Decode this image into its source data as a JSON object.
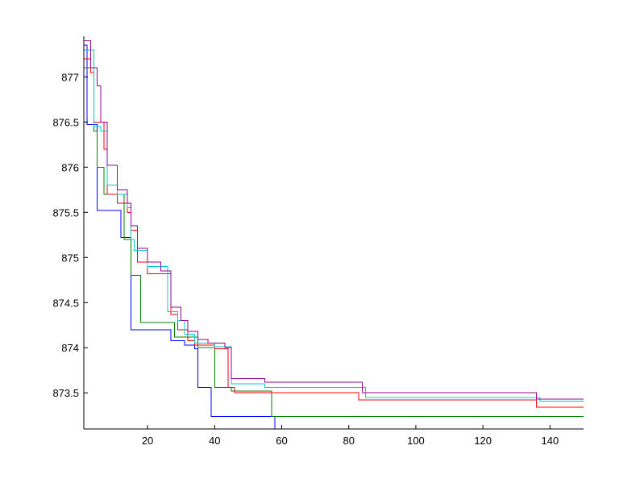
{
  "chart_data": {
    "type": "line",
    "title": "",
    "xlabel": "",
    "ylabel": "",
    "xlim": [
      1,
      150
    ],
    "ylim": [
      873.1,
      877.45
    ],
    "grid": false,
    "x_ticks": [
      20,
      40,
      60,
      80,
      100,
      120,
      140
    ],
    "y_ticks": [
      873.5,
      874,
      874.5,
      875,
      875.5,
      876,
      876.5,
      877
    ],
    "x_tick_labels": [
      "20",
      "40",
      "60",
      "80",
      "100",
      "120",
      "140"
    ],
    "y_tick_labels": [
      "873.5",
      "874",
      "874.5",
      "875",
      "875.5",
      "876",
      "876.5",
      "877"
    ],
    "series": [
      {
        "color": "#0000ff",
        "steps": [
          [
            1,
            877.35
          ],
          [
            2,
            876.47
          ],
          [
            5,
            875.52
          ],
          [
            12,
            875.22
          ],
          [
            15,
            874.2
          ],
          [
            27,
            874.08
          ],
          [
            31,
            874.03
          ],
          [
            34,
            873.99
          ],
          [
            35,
            873.56
          ],
          [
            39,
            873.24
          ],
          [
            58,
            873.05
          ]
        ]
      },
      {
        "color": "#008000",
        "steps": [
          [
            1,
            877.1
          ],
          [
            4,
            876.4
          ],
          [
            5,
            876.0
          ],
          [
            7,
            875.7
          ],
          [
            13,
            875.2
          ],
          [
            15,
            874.8
          ],
          [
            18,
            874.28
          ],
          [
            28,
            874.12
          ],
          [
            35,
            874.0
          ],
          [
            40,
            873.56
          ],
          [
            45,
            873.52
          ],
          [
            57,
            873.24
          ],
          [
            150,
            873.24
          ]
        ]
      },
      {
        "color": "#ff0000",
        "steps": [
          [
            1,
            877.2
          ],
          [
            3,
            877.05
          ],
          [
            4,
            876.5
          ],
          [
            7,
            876.2
          ],
          [
            8,
            875.7
          ],
          [
            11,
            875.6
          ],
          [
            14,
            875.5
          ],
          [
            15,
            875.3
          ],
          [
            17,
            874.95
          ],
          [
            20,
            874.82
          ],
          [
            27,
            874.37
          ],
          [
            29,
            874.2
          ],
          [
            32,
            874.08
          ],
          [
            34,
            874.03
          ],
          [
            40,
            873.99
          ],
          [
            44,
            873.56
          ],
          [
            46,
            873.5
          ],
          [
            83,
            873.42
          ],
          [
            136,
            873.34
          ],
          [
            150,
            873.34
          ]
        ]
      },
      {
        "color": "#00cccc",
        "steps": [
          [
            1,
            877.3
          ],
          [
            4,
            876.45
          ],
          [
            6,
            876.4
          ],
          [
            8,
            875.8
          ],
          [
            11,
            875.7
          ],
          [
            14,
            875.55
          ],
          [
            15,
            875.2
          ],
          [
            16,
            875.08
          ],
          [
            20,
            874.9
          ],
          [
            26,
            874.4
          ],
          [
            29,
            874.3
          ],
          [
            31,
            874.15
          ],
          [
            34,
            874.05
          ],
          [
            40,
            874.01
          ],
          [
            45,
            873.6
          ],
          [
            55,
            873.56
          ],
          [
            85,
            873.45
          ],
          [
            137,
            873.41
          ],
          [
            150,
            873.41
          ]
        ]
      },
      {
        "color": "#990099",
        "steps": [
          [
            1,
            877.4
          ],
          [
            3,
            877.1
          ],
          [
            5,
            876.9
          ],
          [
            6,
            876.5
          ],
          [
            8,
            876.02
          ],
          [
            11,
            875.75
          ],
          [
            14,
            875.6
          ],
          [
            15,
            875.35
          ],
          [
            17,
            875.1
          ],
          [
            20,
            874.95
          ],
          [
            24,
            874.85
          ],
          [
            27,
            874.45
          ],
          [
            30,
            874.3
          ],
          [
            32,
            874.18
          ],
          [
            35,
            874.09
          ],
          [
            38,
            874.05
          ],
          [
            43,
            874.0
          ],
          [
            45,
            873.66
          ],
          [
            55,
            873.62
          ],
          [
            84,
            873.5
          ],
          [
            136,
            873.43
          ],
          [
            150,
            873.43
          ]
        ]
      }
    ]
  }
}
